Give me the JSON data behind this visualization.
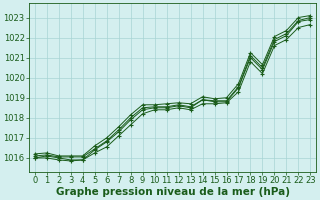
{
  "title": "Graphe pression niveau de la mer (hPa)",
  "background_color": "#d4efef",
  "grid_color": "#a8d4d4",
  "line_color": "#1a5c1a",
  "marker_color": "#1a5c1a",
  "xlim": [
    -0.5,
    23.5
  ],
  "ylim": [
    1015.3,
    1023.7
  ],
  "xticks": [
    0,
    1,
    2,
    3,
    4,
    5,
    6,
    7,
    8,
    9,
    10,
    11,
    12,
    13,
    14,
    15,
    16,
    17,
    18,
    19,
    20,
    21,
    22,
    23
  ],
  "yticks": [
    1016,
    1017,
    1018,
    1019,
    1020,
    1021,
    1022,
    1023
  ],
  "series": [
    [
      1016.0,
      1016.1,
      1016.0,
      1015.9,
      1015.9,
      1016.4,
      1016.8,
      1017.3,
      1017.9,
      1018.4,
      1018.5,
      1018.5,
      1018.6,
      1018.5,
      1018.9,
      1018.8,
      1018.8,
      1019.5,
      1021.0,
      1020.4,
      1021.8,
      1022.1,
      1022.8,
      1022.9
    ],
    [
      1016.0,
      1016.0,
      1015.9,
      1015.85,
      1015.9,
      1016.25,
      1016.55,
      1017.1,
      1017.65,
      1018.2,
      1018.4,
      1018.4,
      1018.5,
      1018.4,
      1018.7,
      1018.7,
      1018.75,
      1019.3,
      1020.8,
      1020.2,
      1021.6,
      1021.9,
      1022.5,
      1022.65
    ],
    [
      1016.1,
      1016.15,
      1016.05,
      1016.05,
      1016.05,
      1016.45,
      1016.85,
      1017.4,
      1018.0,
      1018.5,
      1018.55,
      1018.55,
      1018.65,
      1018.55,
      1018.9,
      1018.85,
      1018.85,
      1019.55,
      1021.1,
      1020.5,
      1021.9,
      1022.2,
      1022.85,
      1023.0
    ],
    [
      1016.2,
      1016.25,
      1016.1,
      1016.1,
      1016.1,
      1016.6,
      1017.0,
      1017.55,
      1018.15,
      1018.65,
      1018.65,
      1018.7,
      1018.75,
      1018.7,
      1019.05,
      1018.95,
      1019.0,
      1019.7,
      1021.25,
      1020.65,
      1022.05,
      1022.35,
      1023.0,
      1023.1
    ]
  ],
  "tick_fontsize": 6.0,
  "xlabel_fontsize": 7.5
}
